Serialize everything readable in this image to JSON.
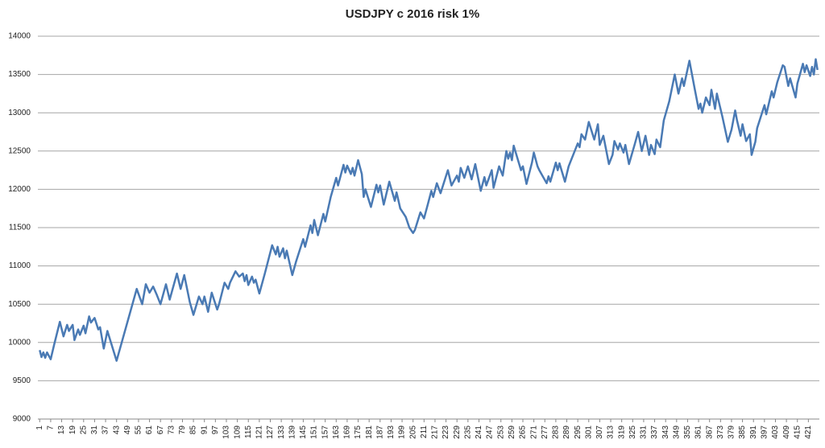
{
  "chart_data": {
    "type": "line",
    "title": "USDJPY c 2016 risk 1%",
    "series": [
      {
        "name": "USDJPY",
        "color": "#4a7ab4",
        "x": [
          1,
          2,
          3,
          4,
          5,
          7,
          9,
          12,
          14,
          16,
          17,
          19,
          20,
          22,
          23,
          25,
          26,
          28,
          29,
          31,
          33,
          34,
          36,
          38,
          43,
          54,
          57,
          59,
          61,
          63,
          65,
          67,
          70,
          72,
          76,
          78,
          80,
          83,
          85,
          88,
          90,
          91,
          93,
          95,
          98,
          99,
          102,
          104,
          105,
          108,
          110,
          112,
          113,
          114,
          115,
          117,
          118,
          119,
          121,
          124,
          128,
          130,
          131,
          132,
          134,
          135,
          136,
          139,
          141,
          145,
          146,
          149,
          150,
          151,
          153,
          156,
          157,
          160,
          163,
          164,
          167,
          168,
          169,
          171,
          172,
          173,
          175,
          177,
          178,
          179,
          182,
          185,
          186,
          187,
          189,
          192,
          195,
          196,
          198,
          201,
          203,
          205,
          206,
          209,
          211,
          213,
          215,
          216,
          218,
          220,
          224,
          226,
          229,
          230,
          231,
          233,
          235,
          237,
          239,
          242,
          244,
          245,
          248,
          249,
          252,
          254,
          256,
          257,
          258,
          259,
          260,
          264,
          265,
          267,
          270,
          271,
          273,
          274,
          278,
          279,
          280,
          283,
          284,
          285,
          288,
          290,
          295,
          296,
          297,
          299,
          301,
          304,
          306,
          307,
          309,
          312,
          314,
          315,
          317,
          318,
          320,
          321,
          323,
          326,
          328,
          330,
          332,
          334,
          335,
          337,
          338,
          340,
          342,
          345,
          348,
          350,
          352,
          353,
          356,
          359,
          361,
          362,
          363,
          365,
          367,
          368,
          370,
          371,
          374,
          377,
          379,
          381,
          382,
          384,
          385,
          387,
          389,
          390,
          392,
          393,
          397,
          398,
          401,
          402,
          404,
          407,
          408,
          410,
          411,
          414,
          415,
          418,
          419,
          420,
          422,
          423,
          424,
          425,
          426
        ],
        "values": [
          9900,
          9810,
          9870,
          9800,
          9870,
          9780,
          9980,
          10270,
          10080,
          10230,
          10150,
          10230,
          10030,
          10170,
          10100,
          10220,
          10120,
          10340,
          10260,
          10320,
          10170,
          10200,
          9920,
          10150,
          9760,
          10700,
          10500,
          10760,
          10650,
          10730,
          10620,
          10500,
          10760,
          10560,
          10900,
          10700,
          10880,
          10530,
          10360,
          10600,
          10500,
          10600,
          10400,
          10650,
          10430,
          10500,
          10780,
          10700,
          10780,
          10930,
          10860,
          10900,
          10800,
          10880,
          10750,
          10860,
          10780,
          10820,
          10640,
          10900,
          11270,
          11150,
          11250,
          11120,
          11230,
          11100,
          11200,
          10880,
          11050,
          11350,
          11250,
          11530,
          11430,
          11600,
          11400,
          11680,
          11580,
          11900,
          12150,
          12050,
          12320,
          12220,
          12310,
          12200,
          12280,
          12180,
          12380,
          12200,
          11900,
          12000,
          11770,
          12060,
          11960,
          12050,
          11800,
          12100,
          11850,
          11960,
          11750,
          11640,
          11500,
          11430,
          11470,
          11700,
          11620,
          11800,
          11980,
          11900,
          12080,
          11950,
          12250,
          12050,
          12180,
          12100,
          12280,
          12150,
          12300,
          12130,
          12330,
          11980,
          12160,
          12050,
          12250,
          12020,
          12300,
          12180,
          12500,
          12400,
          12480,
          12380,
          12570,
          12250,
          12300,
          12070,
          12350,
          12480,
          12300,
          12250,
          12080,
          12170,
          12100,
          12350,
          12250,
          12340,
          12100,
          12300,
          12600,
          12550,
          12720,
          12650,
          12880,
          12650,
          12850,
          12580,
          12700,
          12330,
          12450,
          12630,
          12520,
          12600,
          12480,
          12580,
          12330,
          12580,
          12750,
          12500,
          12700,
          12450,
          12580,
          12460,
          12650,
          12550,
          12900,
          13150,
          13500,
          13250,
          13450,
          13350,
          13680,
          13300,
          13050,
          13120,
          13000,
          13200,
          13100,
          13300,
          13050,
          13250,
          12950,
          12620,
          12780,
          13030,
          12900,
          12700,
          12850,
          12630,
          12720,
          12450,
          12620,
          12800,
          13100,
          12980,
          13280,
          13200,
          13400,
          13620,
          13600,
          13350,
          13450,
          13200,
          13380,
          13640,
          13530,
          13620,
          13480,
          13600,
          13500,
          13700,
          13560
        ]
      }
    ],
    "xlim": [
      0,
      427
    ],
    "xticks": [
      1,
      7,
      13,
      19,
      25,
      31,
      37,
      43,
      49,
      55,
      61,
      67,
      73,
      79,
      85,
      91,
      97,
      103,
      109,
      115,
      121,
      127,
      133,
      139,
      145,
      151,
      157,
      163,
      169,
      175,
      181,
      187,
      193,
      199,
      205,
      211,
      217,
      223,
      229,
      235,
      241,
      247,
      253,
      259,
      265,
      271,
      277,
      283,
      289,
      295,
      301,
      307,
      313,
      319,
      325,
      331,
      337,
      343,
      349,
      355,
      361,
      367,
      373,
      379,
      385,
      391,
      397,
      403,
      409,
      415,
      421
    ],
    "ylim": [
      9000,
      14000
    ],
    "yticks": [
      9000,
      9500,
      10000,
      10500,
      11000,
      11500,
      12000,
      12500,
      13000,
      13500,
      14000
    ],
    "grid": true
  }
}
